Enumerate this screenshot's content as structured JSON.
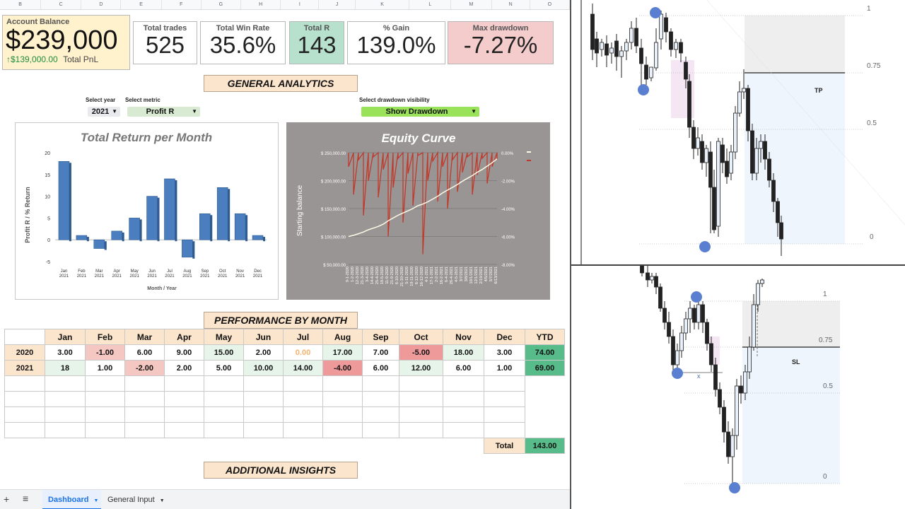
{
  "sheet": {
    "columns": [
      "B",
      "C",
      "D",
      "E",
      "F",
      "G",
      "H",
      "I",
      "J",
      "K",
      "L",
      "M",
      "N",
      "O"
    ],
    "kpis": {
      "account_balance_label": "Account Balance",
      "account_balance_value": "$239,000",
      "pnl_value": "$139,000.00",
      "pnl_label": "Total PnL",
      "total_trades_label": "Total trades",
      "total_trades_value": "525",
      "win_rate_label": "Total Win Rate",
      "win_rate_value": "35.6%",
      "total_r_label": "Total R",
      "total_r_value": "143",
      "gain_label": "% Gain",
      "gain_value": "139.0%",
      "drawdown_label": "Max drawdown",
      "drawdown_value": "-7.27%"
    },
    "banners": {
      "general": "GENERAL ANALYTICS",
      "performance": "PERFORMANCE BY MONTH",
      "additional": "ADDITIONAL INSIGHTS"
    },
    "selectors": {
      "year_label": "Select year",
      "year_value": "2021",
      "metric_label": "Select metric",
      "metric_value": "Profit R",
      "drawdown_label": "Select drawdown visibility",
      "drawdown_value": "Show Drawdown"
    },
    "performance": {
      "months": [
        "Jan",
        "Feb",
        "Mar",
        "Apr",
        "May",
        "Jun",
        "Jul",
        "Aug",
        "Sep",
        "Oct",
        "Nov",
        "Dec",
        "YTD"
      ],
      "rows": [
        {
          "year": "2020",
          "cells": [
            "3.00",
            "-1.00",
            "6.00",
            "9.00",
            "15.00",
            "2.00",
            "0.00",
            "17.00",
            "7.00",
            "-5.00",
            "18.00",
            "3.00",
            "74.00"
          ]
        },
        {
          "year": "2021",
          "cells": [
            "18",
            "1.00",
            "-2.00",
            "2.00",
            "5.00",
            "10.00",
            "14.00",
            "-4.00",
            "6.00",
            "12.00",
            "6.00",
            "1.00",
            "69.00"
          ]
        }
      ],
      "total_label": "Total",
      "total_value": "143.00",
      "colors": {
        "neg": "#f4c7c3",
        "neg_strong": "#ef9a9a",
        "pos": "#e6f4ea",
        "ytd": "#57bb8a",
        "zero": "#f6b26b"
      }
    },
    "tabs": {
      "active": "Dashboard",
      "other": "General Input"
    }
  },
  "chart_data": [
    {
      "type": "bar",
      "title": "Total Return per Month",
      "xlabel": "Month / Year",
      "ylabel": "Profit R / % Return",
      "categories": [
        "Jan 2021",
        "Feb 2021",
        "Mar 2021",
        "Apr 2021",
        "May 2021",
        "Jun 2021",
        "Jul 2021",
        "Aug 2021",
        "Sep 2021",
        "Oct 2021",
        "Nov 2021",
        "Dec 2021"
      ],
      "cat_top": [
        "Jan",
        "Feb",
        "Mar",
        "Apr",
        "May",
        "Jun",
        "Jul",
        "Aug",
        "Sep",
        "Oct",
        "Nov",
        "Dec"
      ],
      "cat_bottom": [
        "2021",
        "2021",
        "2021",
        "2021",
        "2021",
        "2021",
        "2021",
        "2021",
        "2021",
        "2021",
        "2021",
        "2021"
      ],
      "values": [
        18,
        1,
        -2,
        2,
        5,
        10,
        14,
        -4,
        6,
        12,
        6,
        1
      ],
      "yticks": [
        20,
        15,
        10,
        5,
        0,
        -5
      ],
      "ylim": [
        -5,
        20
      ],
      "grid": false,
      "color": "#4a7ebf"
    },
    {
      "type": "line",
      "title": "Equity Curve",
      "ylabel": "Starting balance",
      "yticks_left": [
        "$ 250,000.00",
        "$ 200,000.00",
        "$ 150,000.00",
        "$ 100,000.00",
        "$ 50,000.00"
      ],
      "yticks_right": [
        "0.00%",
        "-2.00%",
        "-4.00%",
        "-6.00%",
        "-8.00%"
      ],
      "ylim_left": [
        50000,
        250000
      ],
      "ylim_right": [
        -8,
        0
      ],
      "xticks": [
        "9-1-2020",
        "1-2-2020",
        "12-3-2020",
        "21-3-2020",
        "3-4-2020",
        "14-4-2020",
        "25-4-2020",
        "18-5-2020",
        "11-9-2020",
        "21-9-2020",
        "6-10-2020",
        "21-10-2020",
        "5-11-2020",
        "19-11-2020",
        "6-12-2020",
        "16-12-2020",
        "4-1-2021",
        "17-1-2021",
        "2-2-2021",
        "16-2-2021",
        "6-4-2021",
        "26-4-2021",
        "4-5-2021",
        "3/7/2021",
        "3/8/2021",
        "10/1/2021",
        "12/1/2021",
        "2/19/2021",
        "4/5/2021",
        "5/7/2021",
        "6/13/2021"
      ],
      "series": [
        {
          "key": "equity",
          "color": "#fffbe6",
          "values": [
            100000,
            102000,
            105000,
            108000,
            112000,
            115000,
            118000,
            122000,
            128000,
            133000,
            138000,
            142000,
            146000,
            150000,
            155000,
            158000,
            162000,
            167000,
            172000,
            178000,
            183000,
            188000,
            193000,
            199000,
            204000,
            209000,
            215000,
            220000,
            226000,
            232000,
            239000
          ]
        },
        {
          "key": "drawdown",
          "color": "#c0392b",
          "values": [
            -1.0,
            -3.0,
            -0.5,
            -4.5,
            -2.0,
            -0.3,
            -3.2,
            -1.2,
            -6.0,
            -2.5,
            -0.4,
            -5.0,
            -1.5,
            -3.8,
            -0.2,
            -7.27,
            -2.0,
            -0.6,
            -3.5,
            -1.0,
            -4.0,
            -0.5,
            -2.8,
            -1.4,
            -0.3,
            -3.0,
            -1.6,
            -0.4,
            -2.2,
            -1.0,
            -0.5
          ]
        }
      ],
      "grid": true,
      "background": "#9a9595"
    }
  ],
  "tradingview": {
    "top": {
      "fib_levels": [
        "1",
        "0.75",
        "0.5",
        "0"
      ],
      "tp_label": "TP"
    },
    "bottom": {
      "fib_levels": [
        "1",
        "0.75",
        "0.5",
        "0"
      ],
      "sl_label": "SL",
      "x_label": "x"
    }
  }
}
